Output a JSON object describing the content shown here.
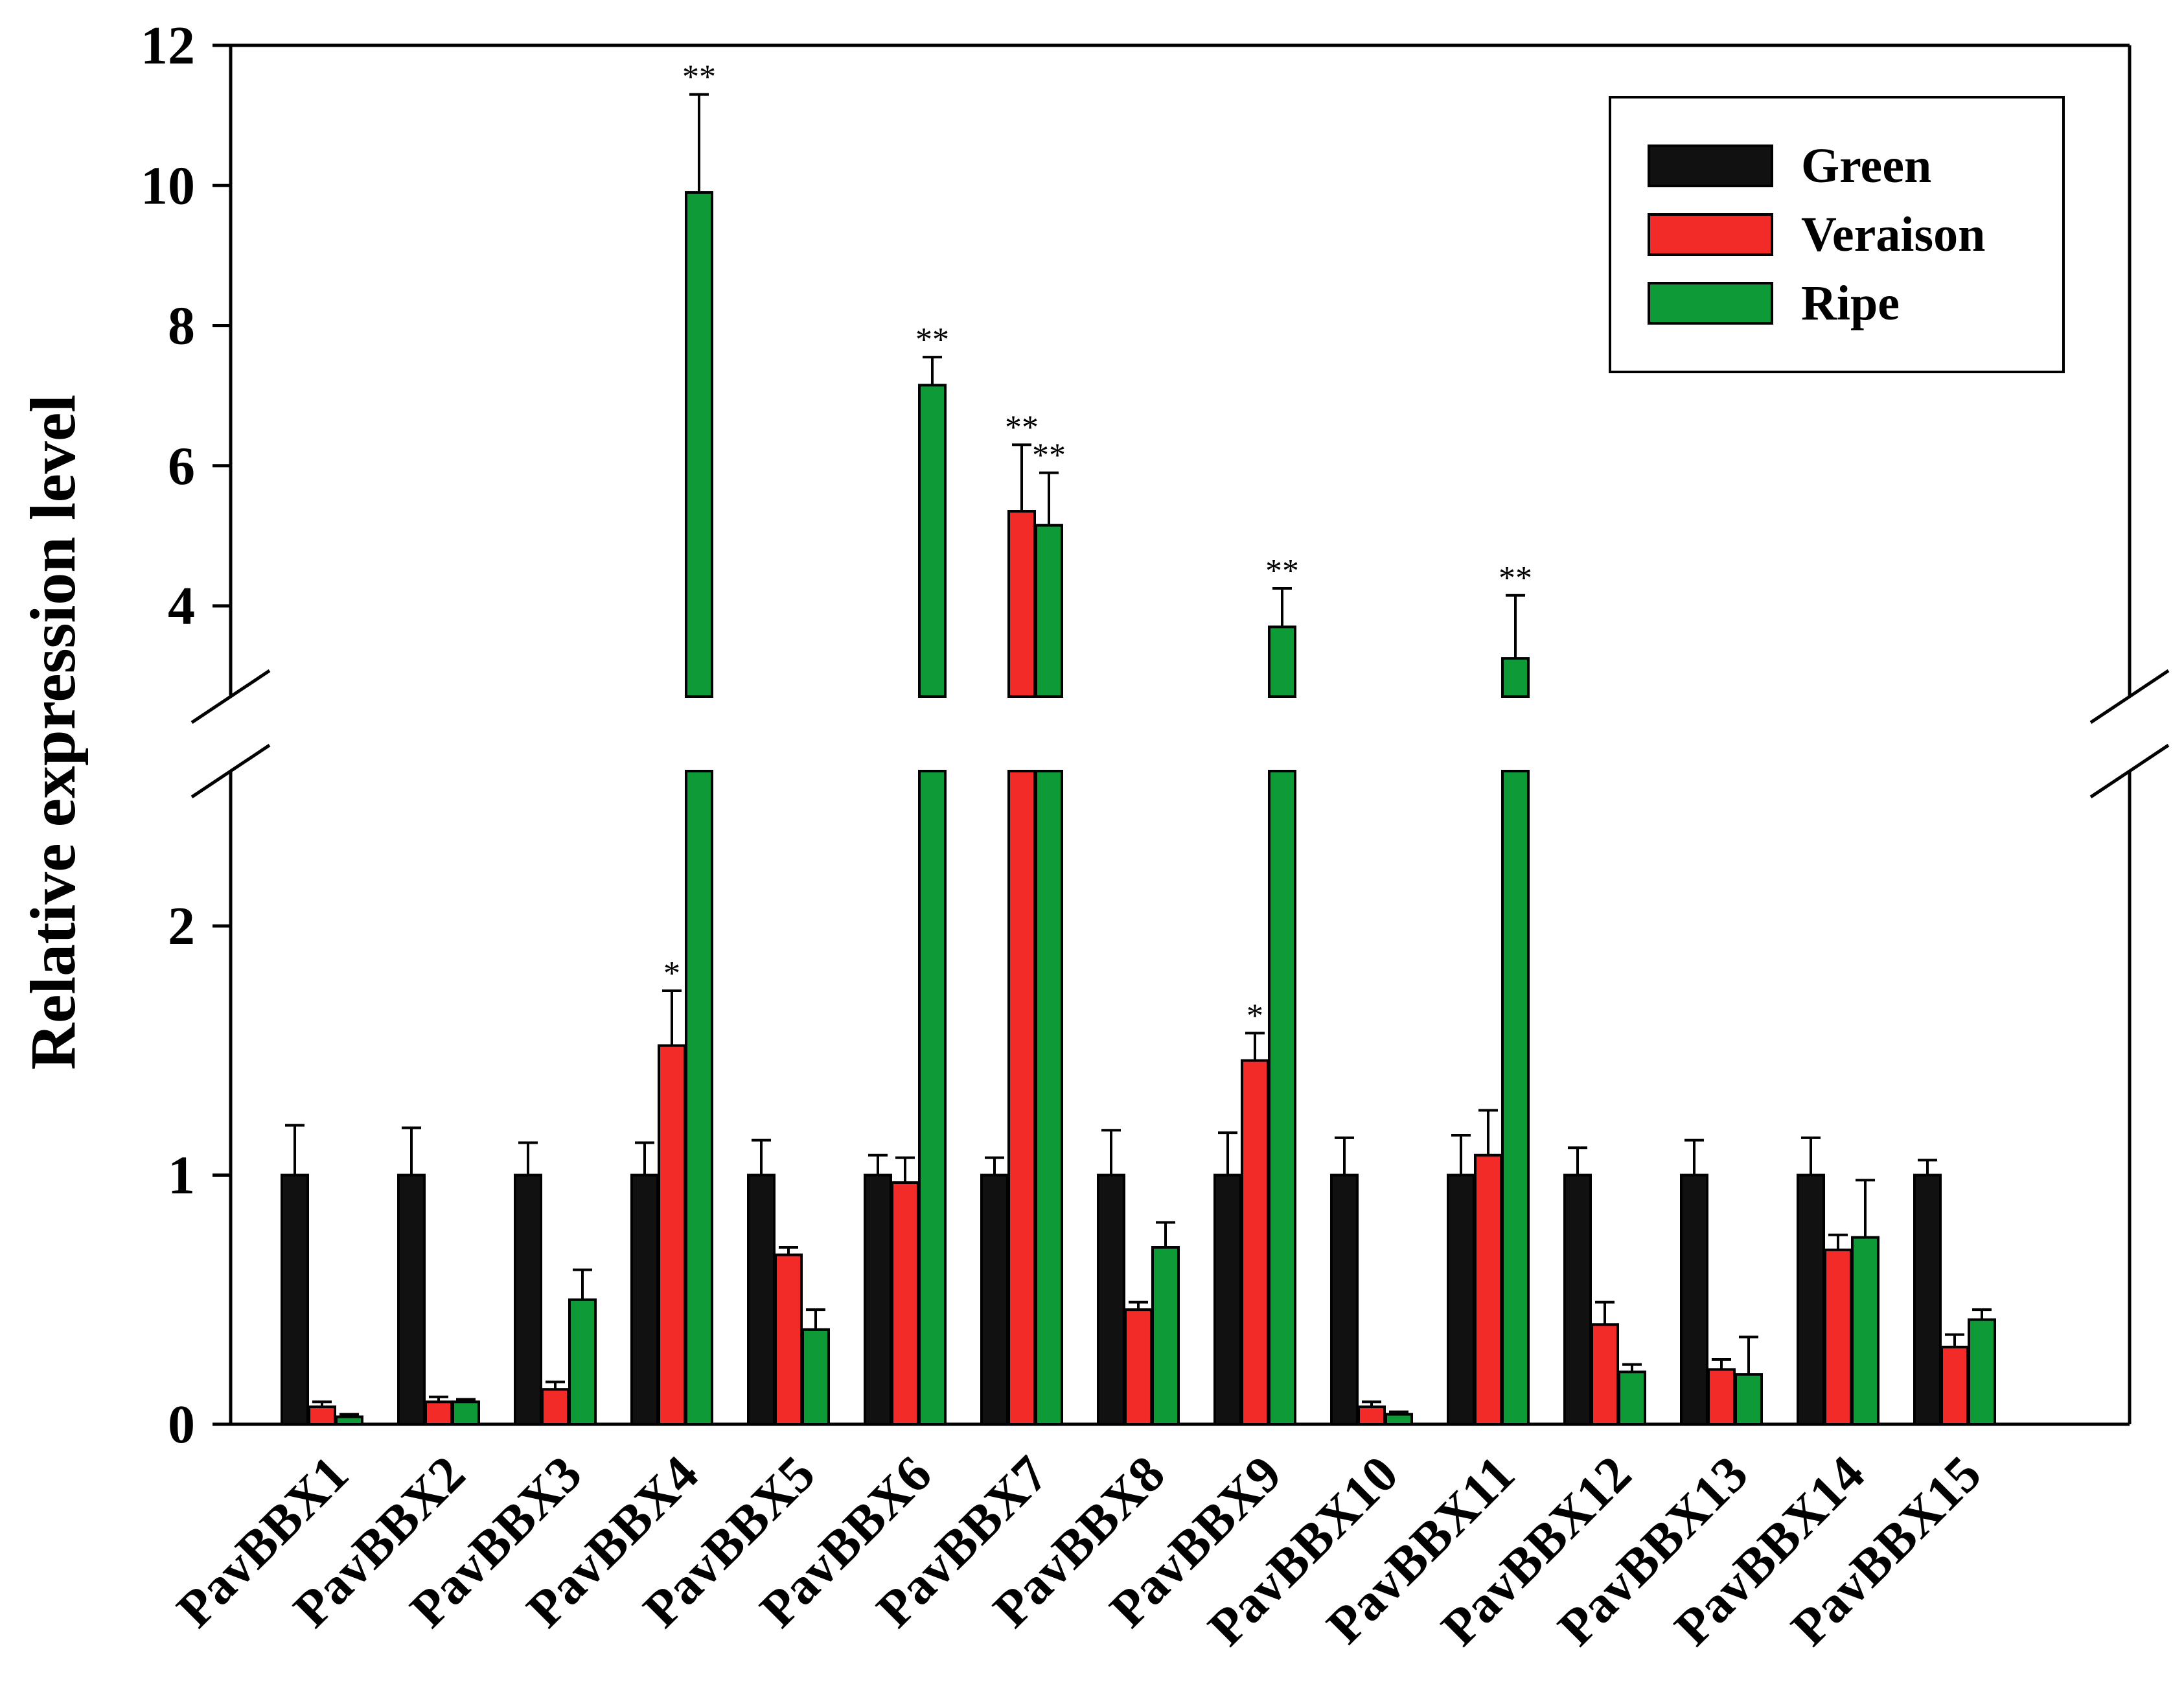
{
  "chart_data": {
    "type": "bar",
    "ylabel": "Relative expression level",
    "xlabel": "",
    "y_axis_break": [
      2.4,
      2.8
    ],
    "ylim": [
      0,
      12
    ],
    "yticks_lower": [
      0,
      1,
      2
    ],
    "yticks_upper": [
      4,
      6,
      8,
      10,
      12
    ],
    "categories": [
      "PavBBX1",
      "PavBBX2",
      "PavBBX3",
      "PavBBX4",
      "PavBBX5",
      "PavBBX6",
      "PavBBX7",
      "PavBBX8",
      "PavBBX9",
      "PavBBX10",
      "PavBBX11",
      "PavBBX12",
      "PavBBX13",
      "PavBBX14",
      "PavBBX15"
    ],
    "series": [
      {
        "name": "Green",
        "color": "#111111",
        "values": [
          1,
          1,
          1,
          1,
          1,
          1,
          1,
          1,
          1,
          1,
          1,
          1,
          1,
          1,
          1
        ],
        "errors": [
          0.2,
          0.19,
          0.13,
          0.13,
          0.14,
          0.08,
          0.07,
          0.18,
          0.17,
          0.15,
          0.16,
          0.11,
          0.14,
          0.15,
          0.06
        ],
        "significance": [
          "",
          "",
          "",
          "",
          "",
          "",
          "",
          "",
          "",
          "",
          "",
          "",
          "",
          "",
          ""
        ]
      },
      {
        "name": "Veraison",
        "color": "#f22a28",
        "values": [
          0.07,
          0.09,
          0.14,
          1.52,
          0.68,
          0.97,
          5.35,
          0.46,
          1.46,
          0.07,
          1.08,
          0.4,
          0.22,
          0.7,
          0.31
        ],
        "errors": [
          0.02,
          0.02,
          0.03,
          0.22,
          0.03,
          0.1,
          0.95,
          0.03,
          0.11,
          0.02,
          0.18,
          0.09,
          0.04,
          0.06,
          0.05
        ],
        "significance": [
          "",
          "",
          "",
          "*",
          "",
          "",
          "**",
          "",
          "*",
          "",
          "",
          "",
          "",
          "",
          ""
        ]
      },
      {
        "name": "Ripe",
        "color": "#0f9a38",
        "values": [
          0.03,
          0.09,
          0.5,
          9.9,
          0.38,
          7.15,
          5.15,
          0.71,
          3.7,
          0.04,
          3.25,
          0.21,
          0.2,
          0.75,
          0.42
        ],
        "errors": [
          0.01,
          0.01,
          0.12,
          1.4,
          0.08,
          0.4,
          0.75,
          0.1,
          0.55,
          0.01,
          0.9,
          0.03,
          0.15,
          0.23,
          0.04
        ],
        "significance": [
          "",
          "",
          "",
          "**",
          "",
          "**",
          "**",
          "",
          "**",
          "",
          "**",
          "",
          "",
          "",
          ""
        ]
      }
    ],
    "legend_position": "top-right",
    "grid": false
  }
}
